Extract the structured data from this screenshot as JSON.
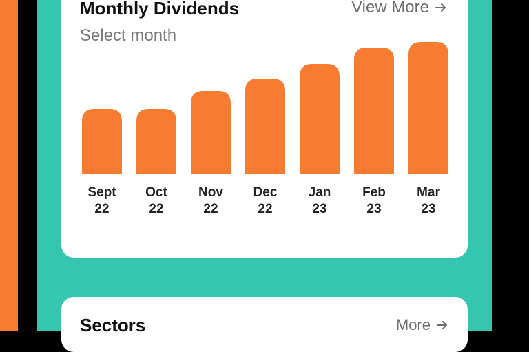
{
  "dividends_card": {
    "title": "Monthly Dividends",
    "view_more_label": "View More",
    "subtitle": "Select month"
  },
  "sectors_card": {
    "title": "Sectors",
    "more_label": "More"
  },
  "colors": {
    "accent": "#F77B30",
    "panel": "#34C6AE",
    "card": "#FFFFFF"
  },
  "icons": [
    "arrow-right-icon"
  ],
  "chart_data": {
    "type": "bar",
    "categories": [
      [
        "Sept",
        "22"
      ],
      [
        "Oct",
        "22"
      ],
      [
        "Nov",
        "22"
      ],
      [
        "Dec",
        "22"
      ],
      [
        "Jan",
        "23"
      ],
      [
        "Feb",
        "23"
      ],
      [
        "Mar",
        "23"
      ]
    ],
    "values": [
      95,
      95,
      121,
      139,
      160,
      184,
      192
    ],
    "ylim": [
      0,
      200
    ],
    "grid": false,
    "title": "",
    "xlabel": "",
    "ylabel": ""
  }
}
